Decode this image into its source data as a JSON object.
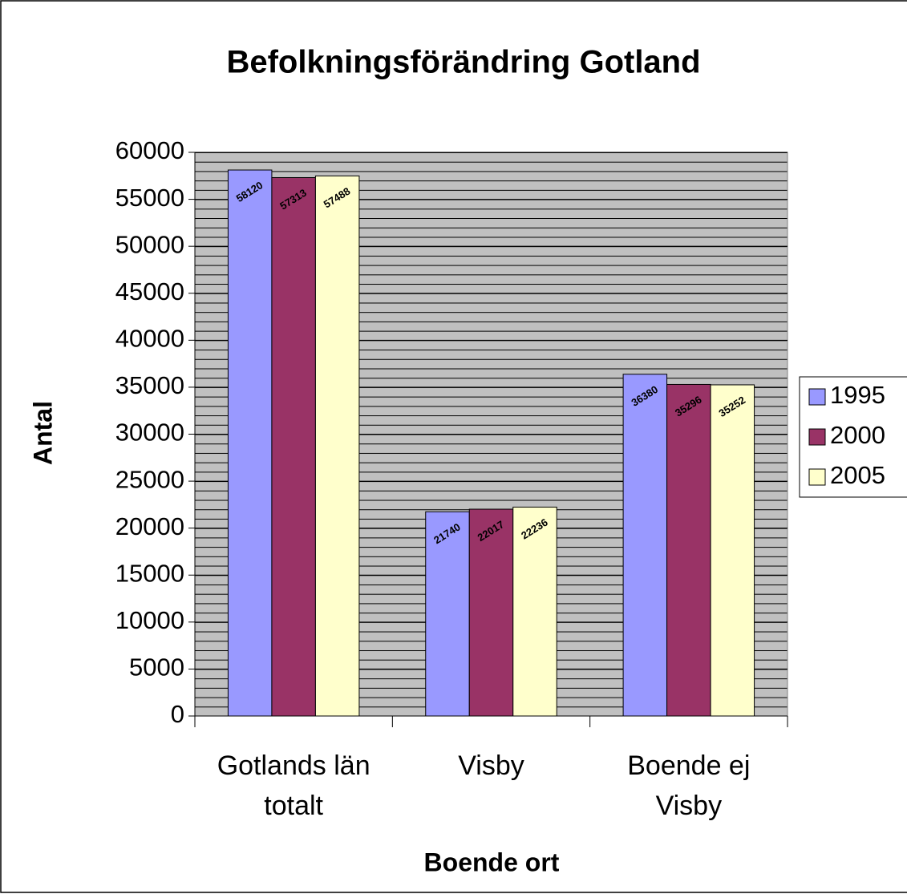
{
  "chart_data": {
    "type": "bar",
    "title": "Befolkningsförändring Gotland",
    "x_label": "Boende ort",
    "y_label": "Antal",
    "categories": [
      "Gotlands län totalt",
      "Visby",
      "Boende ej Visby"
    ],
    "series": [
      {
        "name": "1995",
        "color": "#9999ff",
        "values": [
          58120,
          21740,
          36380
        ]
      },
      {
        "name": "2000",
        "color": "#993366",
        "values": [
          57313,
          22017,
          35296
        ]
      },
      {
        "name": "2005",
        "color": "#ffffcc",
        "values": [
          57488,
          22236,
          35252
        ]
      }
    ],
    "ylim": [
      0,
      60000
    ],
    "yticks": [
      0,
      5000,
      10000,
      15000,
      20000,
      25000,
      30000,
      35000,
      40000,
      45000,
      50000,
      55000,
      60000
    ],
    "grid": true,
    "legend": "right"
  }
}
